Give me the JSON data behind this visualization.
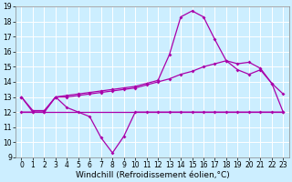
{
  "xlabel": "Windchill (Refroidissement éolien,°C)",
  "bg_color": "#cceeff",
  "line_color": "#aa00aa",
  "grid_color": "#ffffff",
  "xlim": [
    -0.5,
    23.5
  ],
  "ylim": [
    9,
    19
  ],
  "xticks": [
    0,
    1,
    2,
    3,
    4,
    5,
    6,
    7,
    8,
    9,
    10,
    11,
    12,
    13,
    14,
    15,
    16,
    17,
    18,
    19,
    20,
    21,
    22,
    23
  ],
  "yticks": [
    9,
    10,
    11,
    12,
    13,
    14,
    15,
    16,
    17,
    18,
    19
  ],
  "line1_x": [
    0,
    1,
    2,
    3,
    4,
    5,
    6,
    7,
    8,
    9,
    10,
    11,
    12,
    13,
    14,
    15,
    16,
    17,
    18,
    19,
    20,
    21,
    22,
    23
  ],
  "line1_y": [
    13,
    12,
    12,
    13,
    12.3,
    12.0,
    11.7,
    10.3,
    9.3,
    10.4,
    12,
    12,
    12,
    12,
    12,
    12,
    12,
    12,
    12,
    12,
    12,
    12,
    12,
    12
  ],
  "line2_x": [
    0,
    23
  ],
  "line2_y": [
    12,
    12
  ],
  "line3_x": [
    0,
    1,
    2,
    3,
    4,
    5,
    6,
    7,
    8,
    9,
    10,
    11,
    12,
    13,
    14,
    15,
    16,
    17,
    18,
    19,
    20,
    21,
    22,
    23
  ],
  "line3_y": [
    13,
    12.1,
    12.1,
    13,
    13.1,
    13.2,
    13.3,
    13.4,
    13.5,
    13.6,
    13.7,
    13.9,
    14.1,
    15.8,
    18.3,
    18.7,
    18.3,
    16.8,
    15.4,
    15.2,
    15.3,
    14.9,
    13.9,
    13.2
  ],
  "line4_x": [
    0,
    1,
    2,
    3,
    4,
    5,
    6,
    7,
    8,
    9,
    10,
    11,
    12,
    13,
    14,
    15,
    16,
    17,
    18,
    19,
    20,
    21,
    22,
    23
  ],
  "line4_y": [
    12,
    12,
    12,
    13,
    13,
    13.1,
    13.2,
    13.3,
    13.4,
    13.5,
    13.6,
    13.8,
    14.0,
    14.2,
    14.5,
    14.7,
    15.0,
    15.2,
    15.4,
    14.8,
    14.5,
    14.8,
    13.9,
    12.0
  ],
  "font_size_label": 6.5,
  "font_size_tick": 5.5
}
